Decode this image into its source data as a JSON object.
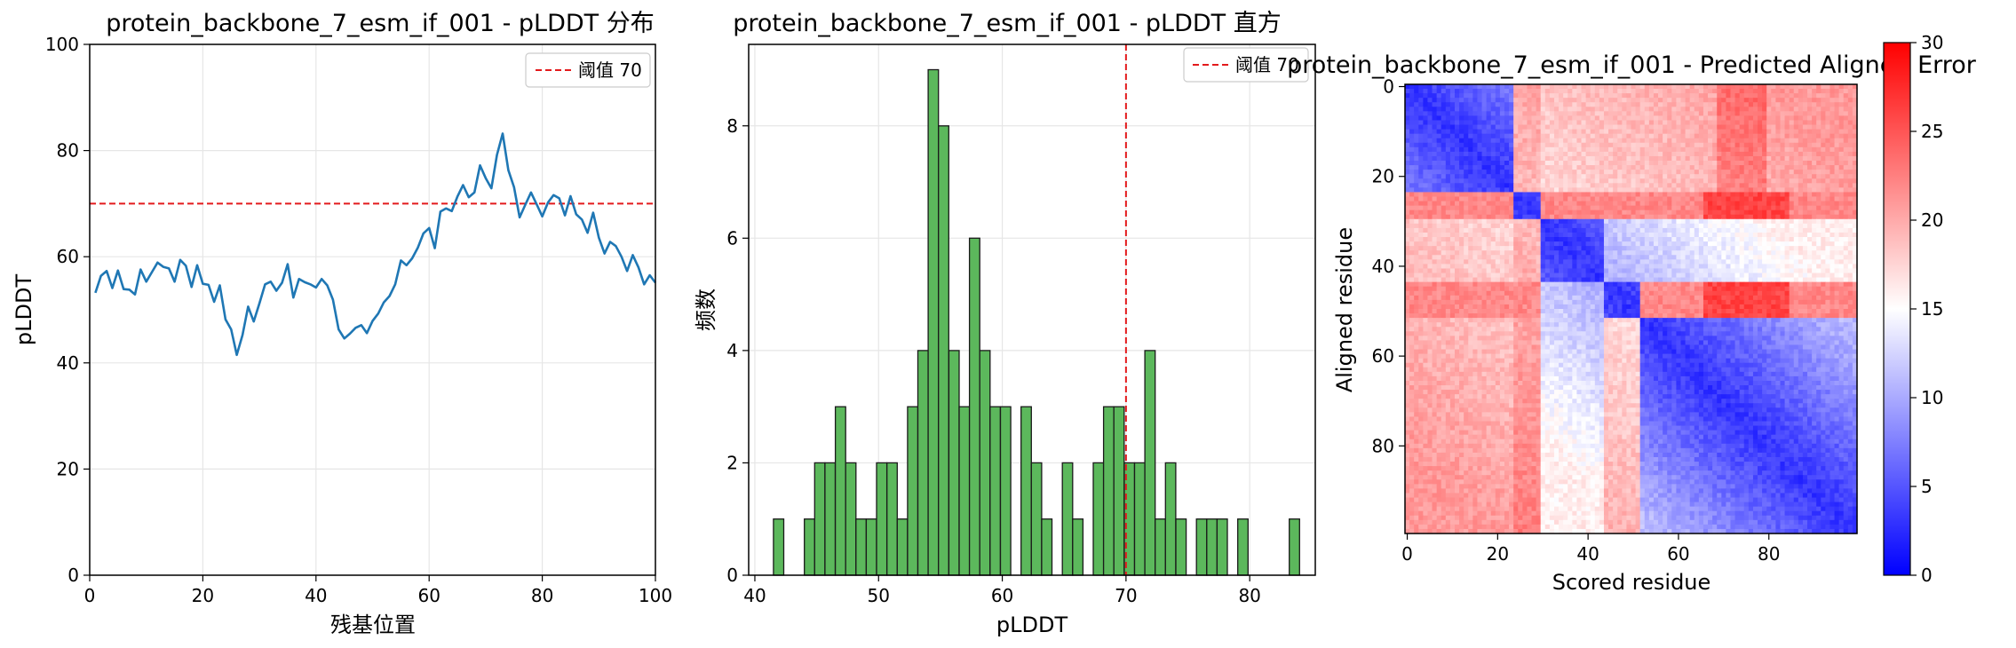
{
  "chart_data": [
    {
      "type": "line",
      "title": "protein_backbone_7_esm_if_001 - pLDDT 分布",
      "xlabel": "残基位置",
      "ylabel": "pLDDT",
      "xlim": [
        0,
        100
      ],
      "ylim": [
        0,
        100
      ],
      "xticks": [
        "0",
        "20",
        "40",
        "60",
        "80",
        "100"
      ],
      "yticks": [
        "0",
        "20",
        "40",
        "60",
        "80",
        "100"
      ],
      "grid": true,
      "legend_position": "top-right",
      "threshold": {
        "label": "阈值 70",
        "value": 70,
        "color": "#e31a1c"
      },
      "series": [
        {
          "name": "",
          "color": "#1f77b4",
          "x": [
            1,
            2,
            3,
            4,
            5,
            6,
            7,
            8,
            9,
            10,
            11,
            12,
            13,
            14,
            15,
            16,
            17,
            18,
            19,
            20,
            21,
            22,
            23,
            24,
            25,
            26,
            27,
            28,
            29,
            30,
            31,
            32,
            33,
            34,
            35,
            36,
            37,
            38,
            39,
            40,
            41,
            42,
            43,
            44,
            45,
            46,
            47,
            48,
            49,
            50,
            51,
            52,
            53,
            54,
            55,
            56,
            57,
            58,
            59,
            60,
            61,
            62,
            63,
            64,
            65,
            66,
            67,
            68,
            69,
            70,
            71,
            72,
            73,
            74,
            75,
            76,
            77,
            78,
            79,
            80,
            81,
            82,
            83,
            84,
            85,
            86,
            87,
            88,
            89,
            90,
            91,
            92,
            93,
            94,
            95,
            96,
            97,
            98,
            99,
            100
          ],
          "values": [
            53.2,
            56.4,
            57.3,
            54.1,
            57.4,
            53.9,
            53.8,
            52.9,
            57.6,
            55.3,
            57.1,
            58.9,
            58.1,
            57.8,
            55.3,
            59.4,
            58.3,
            54.3,
            58.4,
            54.9,
            54.7,
            51.5,
            54.6,
            48.2,
            46.3,
            41.5,
            45.2,
            50.6,
            47.8,
            51.2,
            54.8,
            55.3,
            53.6,
            55.1,
            58.6,
            52.3,
            55.8,
            55.2,
            54.8,
            54.2,
            55.8,
            54.6,
            51.9,
            46.3,
            44.6,
            45.5,
            46.6,
            47.1,
            45.6,
            47.9,
            49.3,
            51.4,
            52.6,
            54.8,
            59.3,
            58.4,
            59.7,
            61.7,
            64.4,
            65.4,
            61.6,
            68.5,
            69.1,
            68.6,
            71.3,
            73.5,
            71.2,
            72.1,
            77.2,
            74.8,
            72.9,
            79.2,
            83.2,
            76.3,
            73.1,
            67.4,
            69.8,
            72.1,
            69.9,
            67.6,
            70.2,
            71.6,
            71.0,
            67.8,
            71.4,
            68.0,
            67.0,
            64.5,
            68.3,
            63.6,
            60.6,
            62.8,
            62.0,
            60.0,
            57.3,
            60.3,
            58.0,
            54.8,
            56.5,
            55.1
          ]
        }
      ]
    },
    {
      "type": "bar",
      "title": "protein_backbone_7_esm_if_001 - pLDDT 直方",
      "xlabel": "pLDDT",
      "ylabel": "频数",
      "xlim": [
        39.5,
        85.3
      ],
      "ylim": [
        0,
        9.45
      ],
      "xticks": [
        "40",
        "50",
        "60",
        "70",
        "80"
      ],
      "yticks": [
        "0",
        "2",
        "4",
        "6",
        "8"
      ],
      "grid": true,
      "legend_position": "top-right",
      "threshold": {
        "label": "阈值 70",
        "value": 70,
        "color": "#e31a1c"
      },
      "bar_color": "#5cb85c",
      "bins_start": 41.5,
      "bin_width": 0.834,
      "counts": [
        1,
        0,
        0,
        1,
        2,
        2,
        3,
        2,
        1,
        1,
        2,
        2,
        1,
        3,
        4,
        9,
        8,
        4,
        3,
        6,
        4,
        3,
        3,
        0,
        3,
        2,
        1,
        0,
        2,
        1,
        0,
        2,
        3,
        3,
        2,
        2,
        4,
        1,
        2,
        1,
        0,
        1,
        1,
        1,
        0,
        1,
        0,
        0,
        0,
        0,
        1
      ]
    },
    {
      "type": "heatmap",
      "title": "protein_backbone_7_esm_if_001 - Predicted Aligned Error",
      "xlabel": "Scored residue",
      "ylabel": "Aligned residue",
      "xticks": [
        "0",
        "20",
        "40",
        "60",
        "80"
      ],
      "yticks": [
        "0",
        "20",
        "40",
        "60",
        "80"
      ],
      "size": 100,
      "colormap": "bwr",
      "colorbar": {
        "min": 0,
        "max": 30,
        "ticks": [
          "0",
          "5",
          "10",
          "15",
          "20",
          "25",
          "30"
        ]
      },
      "domains": [
        [
          0,
          23
        ],
        [
          24,
          29
        ],
        [
          30,
          43
        ],
        [
          44,
          51
        ],
        [
          52,
          99
        ]
      ]
    }
  ]
}
